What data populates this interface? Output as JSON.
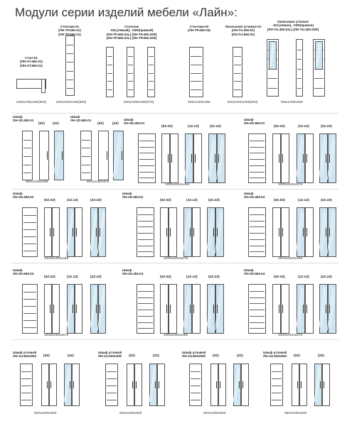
{
  "page_title": "Модули серии изделий мебели «Лайн»:",
  "top_row": {
    "items": [
      {
        "caption": "Стол-01\n(ЛН-ST.450.01)\n(ЛН-ST.560.01)",
        "dims": "1000x756x450(560)"
      },
      {
        "caption": "Стеллаж-01\n(ЛН-TP.450.01)\n(ЛН-TP.560.01)",
        "dims": "330x2400x450(560)"
      },
      {
        "caption": "Стеллаж\n-02L(левый), -02R(правый)\n(ЛН-TP.450.02L)   (ЛН-TP.450.02R)\n(ЛН-TP.560.02L)   (ЛН-TP.560.02R)",
        "dims": "250x2400x466(576)"
      },
      {
        "caption": "Стеллаж-03\n(ЛН-TP.450.03)",
        "dims": "500x2400x466"
      },
      {
        "caption": "Окончание угловое-01\n(ЛН-TU.450.01)\n(ЛН-TU.560.01)",
        "dims": "300x2400x466(560)"
      },
      {
        "caption": "Окончание угловое\n-02L(левое), -02R(правое)\n(ЛН-TU.450.02L)   (ЛН-TU.450.02R)",
        "dims": "750x2400x466"
      }
    ]
  },
  "variants": {
    "v1": "(0Z)",
    "v2": "(2Z)",
    "v3": "(0Z.0Z)",
    "v4": "(1Z.1Z)",
    "v5": "(2Z.2Z)"
  },
  "rows": [
    {
      "a_label": "Шкаф\nЛН-1D.450.01",
      "a_dims": "500x2400x466",
      "b_label": "Шкаф\nЛН-1D.560.01",
      "b_dims": "500x2400x576",
      "c_label": "Шкаф\nЛН-2D.450.01",
      "c_dims": "1000x2400x466",
      "d_label": "Шкаф\nЛН-2D.560.01",
      "d_dims": "1000x2400x576"
    },
    {
      "a_label": "Шкаф\nЛН-2D.450.02",
      "a_dims": "1000x2400x466",
      "c_label": "Шкаф\nЛН-2D.560.02",
      "c_dims": "1000x2400x576",
      "d_label": "Шкаф\nЛН-2D.450.03",
      "d_dims": "1000x2400x466"
    },
    {
      "a_label": "Шкаф\nЛН-2D.560.03",
      "a_dims": "1000x2400x576",
      "c_label": "Шкаф\nЛН-2D.450.04",
      "c_dims": "1000x2400x466",
      "d_label": "Шкаф\nЛН-2D.560.04",
      "d_dims": "1000x2400x576"
    }
  ],
  "corner_row": [
    {
      "label": "Шкаф угловой\nЛН-1U.820x820",
      "dims": "820x2400x820"
    },
    {
      "label": "Шкаф угловой\nЛН-1U.930x930",
      "dims": "930x2400x930"
    },
    {
      "label": "Шкаф угловой\nЛН-1U.820x930",
      "dims": "820x2400x930"
    },
    {
      "label": "Шкаф угловой\nЛН-1U.930x820",
      "dims": "930x2400x820"
    }
  ]
}
